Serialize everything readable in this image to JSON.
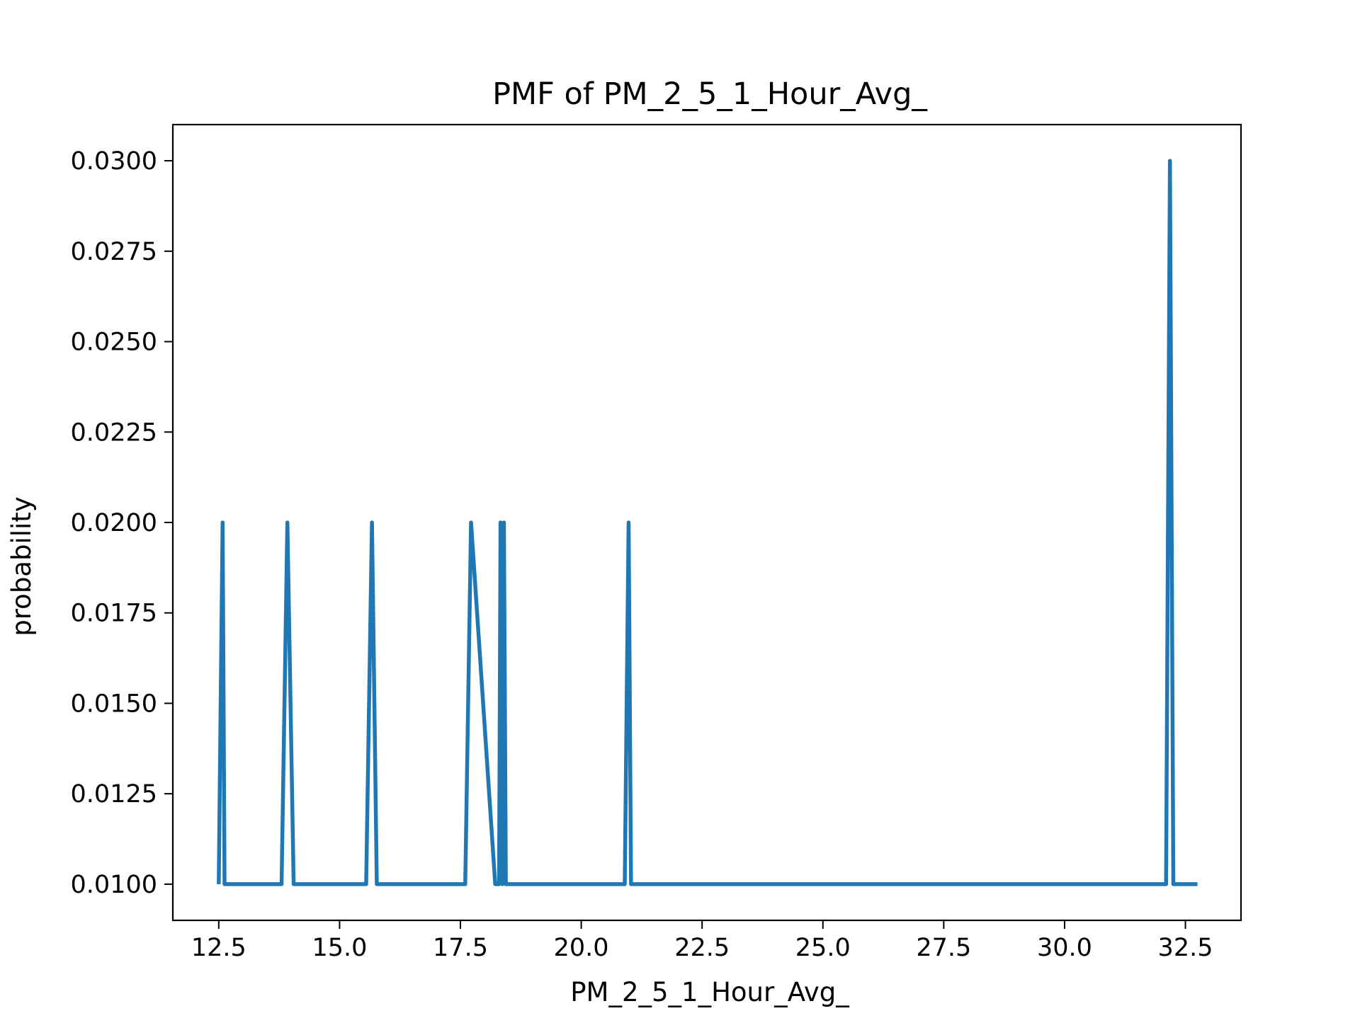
{
  "chart_data": {
    "type": "line",
    "title": "PMF of PM_2_5_1_Hour_Avg_",
    "xlabel": "PM_2_5_1_Hour_Avg_",
    "ylabel": "probability",
    "xlim": [
      11.55,
      33.65
    ],
    "ylim": [
      0.009,
      0.031
    ],
    "x_ticks": [
      12.5,
      15.0,
      17.5,
      20.0,
      22.5,
      25.0,
      27.5,
      30.0,
      32.5
    ],
    "x_tick_labels": [
      "12.5",
      "15.0",
      "17.5",
      "20.0",
      "22.5",
      "25.0",
      "27.5",
      "30.0",
      "32.5"
    ],
    "y_ticks": [
      0.01,
      0.0125,
      0.015,
      0.0175,
      0.02,
      0.0225,
      0.025,
      0.0275,
      0.03
    ],
    "y_tick_labels": [
      "0.0100",
      "0.0125",
      "0.0150",
      "0.0175",
      "0.0200",
      "0.0225",
      "0.0250",
      "0.0275",
      "0.0300"
    ],
    "grid": false,
    "color": "#1f77b4",
    "series": [
      {
        "x": [
          12.5,
          12.58,
          12.62,
          13.8,
          13.92,
          14.05,
          15.55,
          15.67,
          15.77,
          17.6,
          17.72,
          18.22,
          18.3,
          18.33,
          18.37,
          18.4,
          18.44,
          20.9,
          20.98,
          21.03,
          32.1,
          32.18,
          32.25,
          32.75
        ],
        "y": [
          0.01,
          0.02,
          0.01,
          0.01,
          0.02,
          0.01,
          0.01,
          0.02,
          0.01,
          0.01,
          0.02,
          0.01,
          0.01,
          0.02,
          0.01,
          0.02,
          0.01,
          0.01,
          0.02,
          0.01,
          0.01,
          0.03,
          0.01,
          0.01
        ]
      }
    ]
  }
}
